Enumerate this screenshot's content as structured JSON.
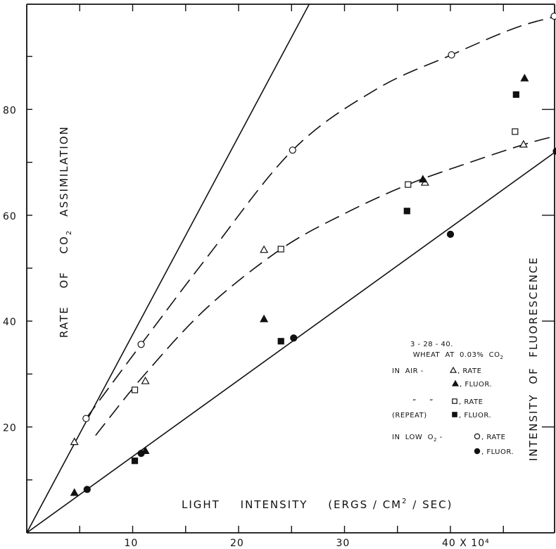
{
  "chart_data": {
    "type": "scatter",
    "xlabel_parts": [
      "LIGHT",
      "INTENSITY",
      "(ERGS / CM",
      "2",
      " / SEC)"
    ],
    "ylabel_left_parts": [
      "RATE",
      "OF",
      "CO",
      "2",
      "ASSIMILATION"
    ],
    "ylabel_right": "INTENSITY  OF  FLUORESCENCE",
    "x_ticks": [
      {
        "value": 10,
        "label": "10"
      },
      {
        "value": 20,
        "label": "20"
      },
      {
        "value": 30,
        "label": "30"
      },
      {
        "value": 40,
        "label": "40 X 10⁴"
      }
    ],
    "y_ticks": [
      {
        "value": 20,
        "label": "20"
      },
      {
        "value": 40,
        "label": "40"
      },
      {
        "value": 60,
        "label": "60"
      },
      {
        "value": 80,
        "label": "80"
      }
    ],
    "xlim": [
      0,
      50
    ],
    "ylim": [
      0,
      100
    ],
    "series": [
      {
        "marker": "open-triangle",
        "points": [
          [
            4.5,
            17.2
          ],
          [
            11.2,
            28.7
          ],
          [
            22.4,
            53.5
          ],
          [
            37.6,
            66.2
          ],
          [
            46.9,
            73.4
          ]
        ]
      },
      {
        "marker": "filled-triangle",
        "points": [
          [
            4.5,
            7.6
          ],
          [
            11.2,
            15.5
          ],
          [
            22.4,
            40.4
          ],
          [
            37.4,
            66.8
          ],
          [
            47.0,
            85.9
          ]
        ]
      },
      {
        "marker": "open-square",
        "points": [
          [
            10.2,
            27.0
          ],
          [
            24.0,
            53.6
          ],
          [
            36.0,
            65.8
          ],
          [
            46.1,
            75.8
          ]
        ]
      },
      {
        "marker": "filled-square",
        "points": [
          [
            10.2,
            13.6
          ],
          [
            24.0,
            36.2
          ],
          [
            35.9,
            60.8
          ],
          [
            46.2,
            82.8
          ]
        ]
      },
      {
        "marker": "open-circle",
        "points": [
          [
            5.6,
            21.6
          ],
          [
            10.8,
            35.6
          ],
          [
            25.1,
            72.3
          ],
          [
            40.1,
            90.3
          ],
          [
            49.8,
            97.6
          ]
        ]
      },
      {
        "marker": "filled-circle",
        "points": [
          [
            5.7,
            8.2
          ],
          [
            10.8,
            15.0
          ],
          [
            25.2,
            36.8
          ],
          [
            40.0,
            56.4
          ],
          [
            50.0,
            72.1
          ]
        ]
      }
    ],
    "lines": [
      {
        "style": "solid",
        "points": [
          [
            0,
            0
          ],
          [
            26.7,
            100
          ]
        ]
      },
      {
        "style": "solid",
        "points": [
          [
            0,
            0
          ],
          [
            50,
            72.1
          ]
        ]
      },
      {
        "style": "dashed",
        "points": [
          [
            5.6,
            21.6
          ],
          [
            10.8,
            35.6
          ],
          [
            17,
            52
          ],
          [
            25.1,
            72.3
          ],
          [
            33,
            83.8
          ],
          [
            40.1,
            90.3
          ],
          [
            46,
            95.3
          ],
          [
            50,
            97.6
          ]
        ]
      },
      {
        "style": "dashed",
        "points": [
          [
            6.5,
            18.4
          ],
          [
            11,
            29.6
          ],
          [
            17,
            42.5
          ],
          [
            24,
            53.6
          ],
          [
            30,
            60.3
          ],
          [
            36,
            65.8
          ],
          [
            42,
            70.1
          ],
          [
            47,
            73.4
          ],
          [
            50,
            75.0
          ]
        ]
      }
    ],
    "legend": {
      "position": "center-right",
      "date": "3 - 28 - 40.",
      "subtitle_parts": [
        "WHEAT  AT  0.03%  CO",
        "2"
      ],
      "entries": [
        {
          "prefix": "IN  AIR - ",
          "marker": "open-triangle",
          "label": ", RATE"
        },
        {
          "prefix": "",
          "marker": "filled-triangle",
          "label": ", FLUOR."
        },
        {
          "prefix": "”     ”",
          "marker": "open-square",
          "label": ", RATE"
        },
        {
          "prefix": "(REPEAT)",
          "marker": "filled-square",
          "label": ", FLUOR."
        },
        {
          "prefix": "IN  LOW  O",
          "prefix_sub": "2",
          "prefix_after": " - ",
          "marker": "open-circle",
          "label": ", RATE"
        },
        {
          "prefix": "",
          "marker": "filled-circle",
          "label": ", FLUOR."
        }
      ]
    }
  }
}
